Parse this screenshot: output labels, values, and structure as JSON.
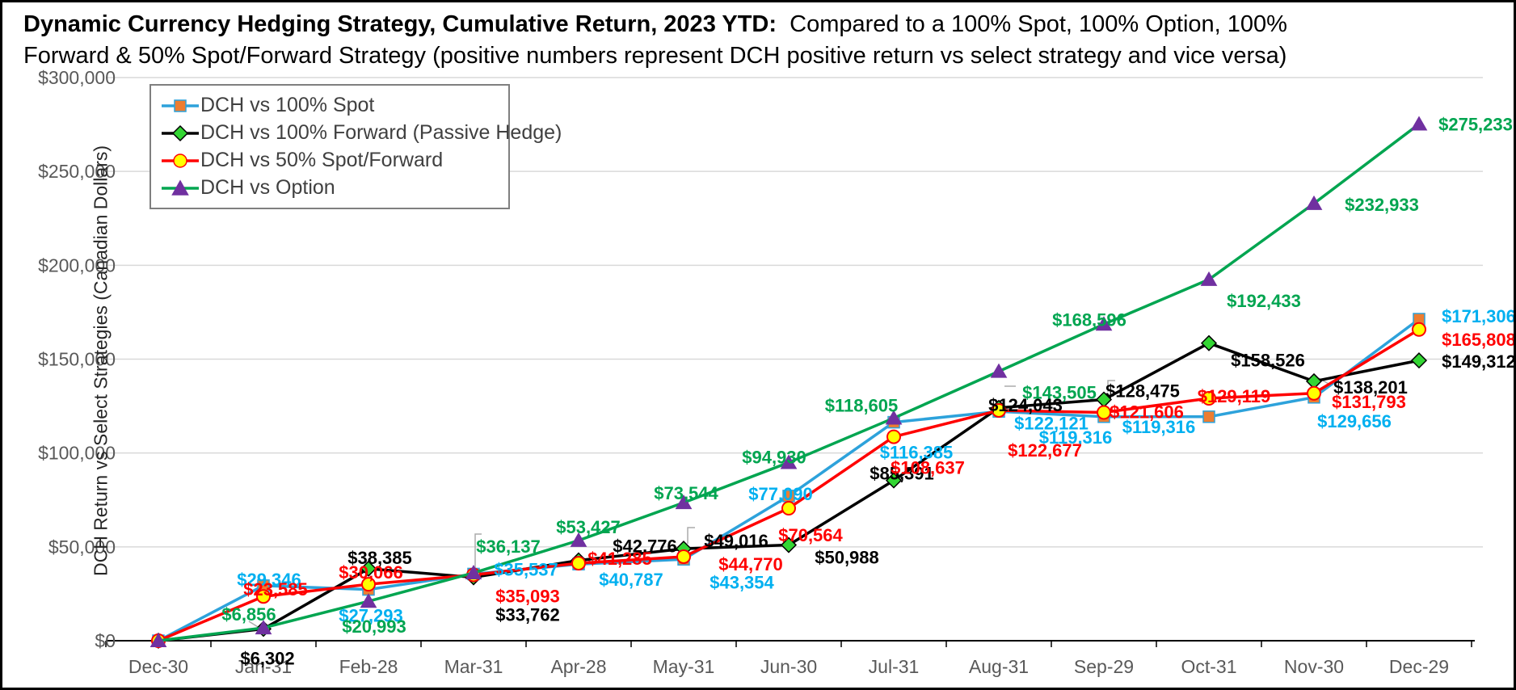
{
  "title": {
    "line1_bold": "Dynamic Currency Hedging Strategy, Cumulative Return, 2023 YTD:",
    "line1_rest": "  Compared to a 100% Spot, 100% Option, 100% Forward & 50% Spot/Forward Strategy (positive numbers represent DCH positive return vs select strategy and vice versa)"
  },
  "y_axis_title": "DCH Return vs Select Strategies (Canadian Dollars)",
  "chart_data": {
    "type": "line",
    "title": "Dynamic Currency Hedging Strategy, Cumulative Return, 2023 YTD",
    "xlabel": "",
    "ylabel": "DCH Return vs Select Strategies (Canadian Dollars)",
    "ylim": [
      0,
      300000
    ],
    "grid": true,
    "legend_position": "top-left-inside",
    "y_ticks": [
      "$0",
      "$50,000",
      "$100,000",
      "$150,000",
      "$200,000",
      "$250,000",
      "$300,000"
    ],
    "categories": [
      "Dec-30",
      "Jan-31",
      "Feb-28",
      "Mar-31",
      "Apr-28",
      "May-31",
      "Jun-30",
      "Jul-31",
      "Aug-31",
      "Sep-29",
      "Oct-31",
      "Nov-30",
      "Dec-29"
    ],
    "series": [
      {
        "name": "DCH vs 100% Spot",
        "line_color": "#2DA2DB",
        "label_color": "#00B0F0",
        "marker": "square",
        "marker_fill": "#ED7D31",
        "marker_stroke": "#2DA2DB",
        "values": [
          0,
          29346,
          27293,
          35537,
          40787,
          43354,
          77090,
          116385,
          122121,
          119316,
          119316,
          129656,
          171306
        ]
      },
      {
        "name": "DCH vs 100% Forward (Passive Hedge)",
        "line_color": "#000000",
        "label_color": "#000000",
        "marker": "diamond",
        "marker_fill": "#33D633",
        "marker_stroke": "#000000",
        "values": [
          0,
          6302,
          38385,
          33762,
          42776,
          49016,
          50988,
          85391,
          124043,
          128475,
          158526,
          138201,
          149312
        ]
      },
      {
        "name": "DCH vs 50% Spot/Forward",
        "line_color": "#FF0000",
        "label_color": "#FF0000",
        "marker": "circle",
        "marker_fill": "#FFFF00",
        "marker_stroke": "#FF0000",
        "values": [
          0,
          23585,
          30066,
          35093,
          41285,
          44770,
          70564,
          108637,
          122677,
          121606,
          129119,
          131793,
          165808
        ]
      },
      {
        "name": "DCH vs Option",
        "line_color": "#00A550",
        "label_color": "#00A550",
        "marker": "triangle",
        "marker_fill": "#7030A0",
        "marker_stroke": "#7030A0",
        "values": [
          0,
          6856,
          20993,
          36137,
          53427,
          73544,
          94930,
          118605,
          143505,
          168596,
          192433,
          232933,
          275233
        ]
      }
    ]
  },
  "colors": {
    "gridline": "#D9D9D9",
    "axis": "#000000",
    "tick_label": "#595959",
    "legend_text": "#404040",
    "leader": "#ABABAB"
  }
}
